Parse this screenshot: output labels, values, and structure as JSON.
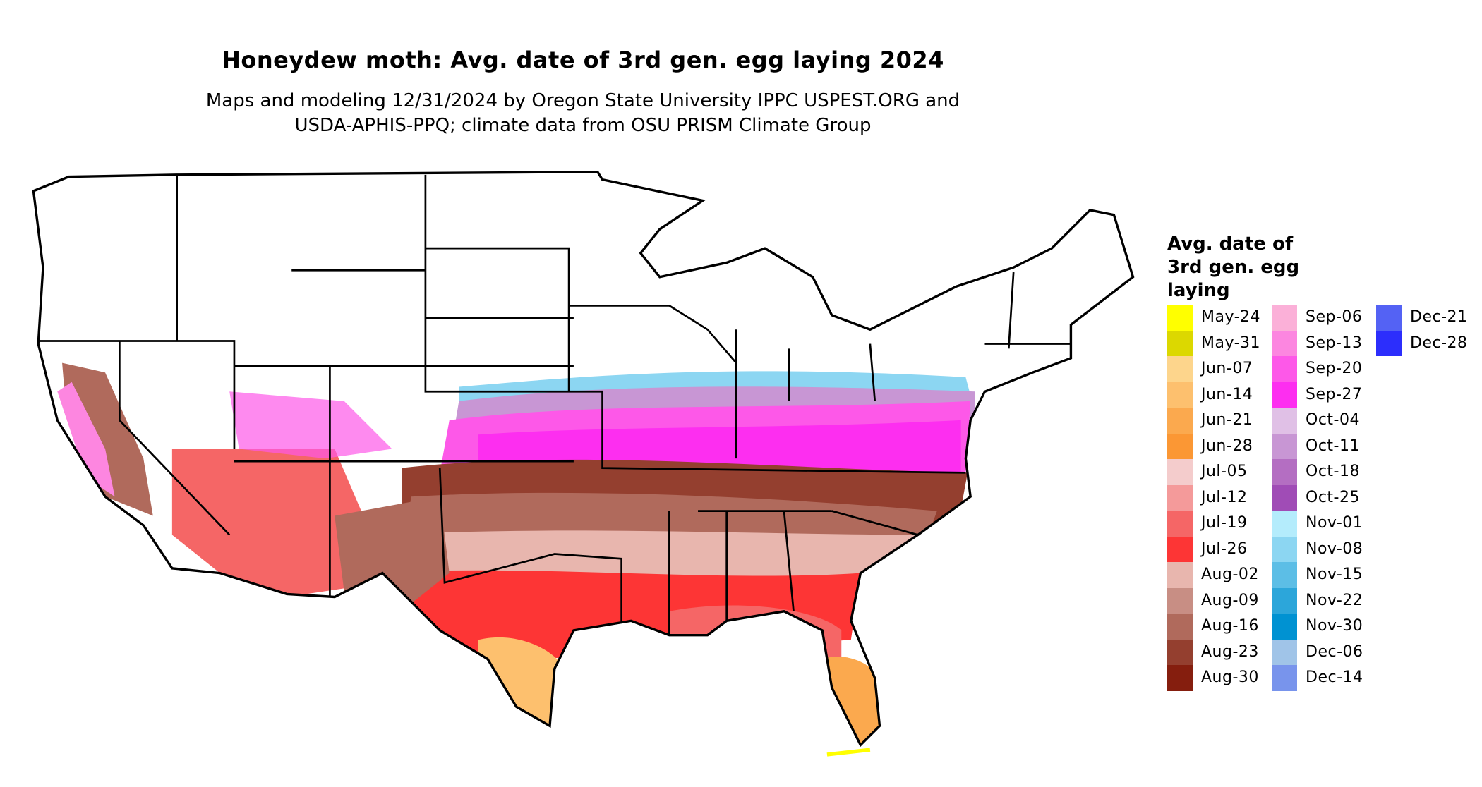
{
  "chart_data": {
    "type": "map",
    "title": "Honeydew moth: Avg. date of 3rd gen. egg laying 2024",
    "subtitle_lines": [
      "Maps and modeling 12/31/2024 by Oregon State University IPPC USPEST.ORG and",
      "USDA-APHIS-PPQ; climate data from OSU PRISM Climate Group"
    ],
    "legend": {
      "title": "Avg. date of 3rd gen. egg laying",
      "title_lines": [
        "Avg. date of",
        "3rd gen. egg",
        "laying"
      ],
      "placement": "right",
      "entries": [
        {
          "label": "May-24",
          "color": "#ffff00"
        },
        {
          "label": "May-31",
          "color": "#dcd800"
        },
        {
          "label": "Jun-07",
          "color": "#fdd58c"
        },
        {
          "label": "Jun-14",
          "color": "#fdc06e"
        },
        {
          "label": "Jun-21",
          "color": "#fba94e"
        },
        {
          "label": "Jun-28",
          "color": "#fb9734"
        },
        {
          "label": "Jul-05",
          "color": "#f4cccc"
        },
        {
          "label": "Jul-12",
          "color": "#f49a9a"
        },
        {
          "label": "Jul-19",
          "color": "#f56666"
        },
        {
          "label": "Jul-26",
          "color": "#fd3535"
        },
        {
          "label": "Aug-02",
          "color": "#e8b6ae"
        },
        {
          "label": "Aug-09",
          "color": "#c88e84"
        },
        {
          "label": "Aug-16",
          "color": "#b06a5c"
        },
        {
          "label": "Aug-23",
          "color": "#943f2f"
        },
        {
          "label": "Aug-30",
          "color": "#851e0e"
        },
        {
          "label": "Sep-06",
          "color": "#fbb0d8"
        },
        {
          "label": "Sep-13",
          "color": "#fc86e0"
        },
        {
          "label": "Sep-20",
          "color": "#fd58e8"
        },
        {
          "label": "Sep-27",
          "color": "#fd2ef0"
        },
        {
          "label": "Oct-04",
          "color": "#e0c0e6"
        },
        {
          "label": "Oct-11",
          "color": "#c896d4"
        },
        {
          "label": "Oct-18",
          "color": "#b46ec2"
        },
        {
          "label": "Oct-25",
          "color": "#a04cb6"
        },
        {
          "label": "Nov-01",
          "color": "#b4ecfc"
        },
        {
          "label": "Nov-08",
          "color": "#8cd6f2"
        },
        {
          "label": "Nov-15",
          "color": "#5cbee6"
        },
        {
          "label": "Nov-22",
          "color": "#2ca6da"
        },
        {
          "label": "Nov-30",
          "color": "#0092d2"
        },
        {
          "label": "Dec-06",
          "color": "#a0c4e8"
        },
        {
          "label": "Dec-14",
          "color": "#7894ec"
        },
        {
          "label": "Dec-21",
          "color": "#5462f4"
        },
        {
          "label": "Dec-28",
          "color": "#2c2efc"
        }
      ]
    }
  }
}
